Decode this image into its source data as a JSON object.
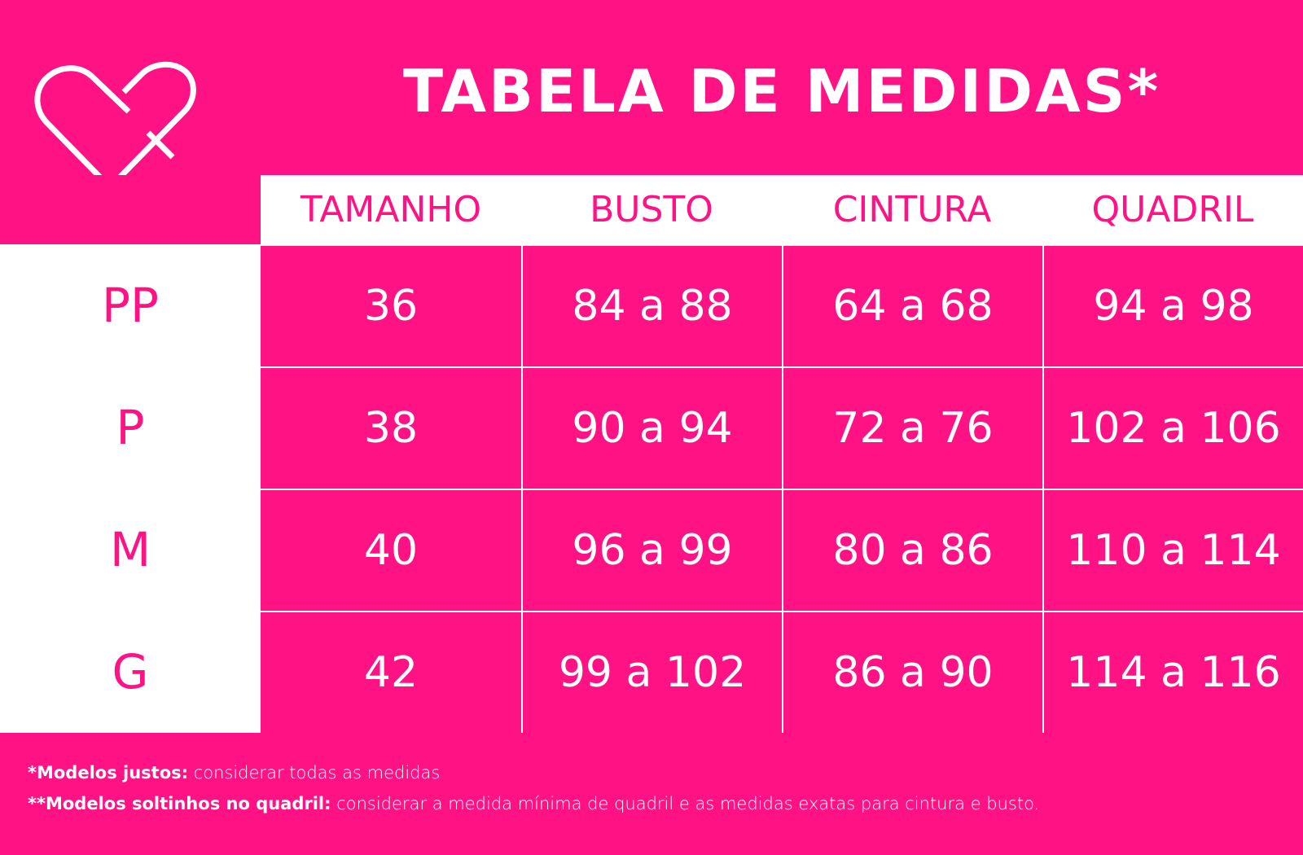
{
  "brand_color": "#FF1283",
  "logo": {
    "icon": "heart-logo-icon"
  },
  "title": "TABELA DE MEDIDAS*",
  "table": {
    "headers": [
      "TAMANHO",
      "BUSTO",
      "CINTURA",
      "QUADRIL"
    ],
    "rows": [
      {
        "size": "PP",
        "cells": [
          "36",
          "84 a 88",
          "64 a 68",
          "94 a 98"
        ]
      },
      {
        "size": "P",
        "cells": [
          "38",
          "90 a 94",
          "72 a 76",
          "102 a 106"
        ]
      },
      {
        "size": "M",
        "cells": [
          "40",
          "96 a 99",
          "80 a 86",
          "110 a 114"
        ]
      },
      {
        "size": "G",
        "cells": [
          "42",
          "99 a 102",
          "86 a 90",
          "114 a 116"
        ]
      }
    ]
  },
  "notes": [
    {
      "bold": "*Modelos justos:",
      "text": " considerar todas as medidas"
    },
    {
      "bold": "**Modelos soltinhos no quadril:",
      "text": " considerar a medida mínima de quadril e as medidas exatas para cintura e busto."
    }
  ]
}
